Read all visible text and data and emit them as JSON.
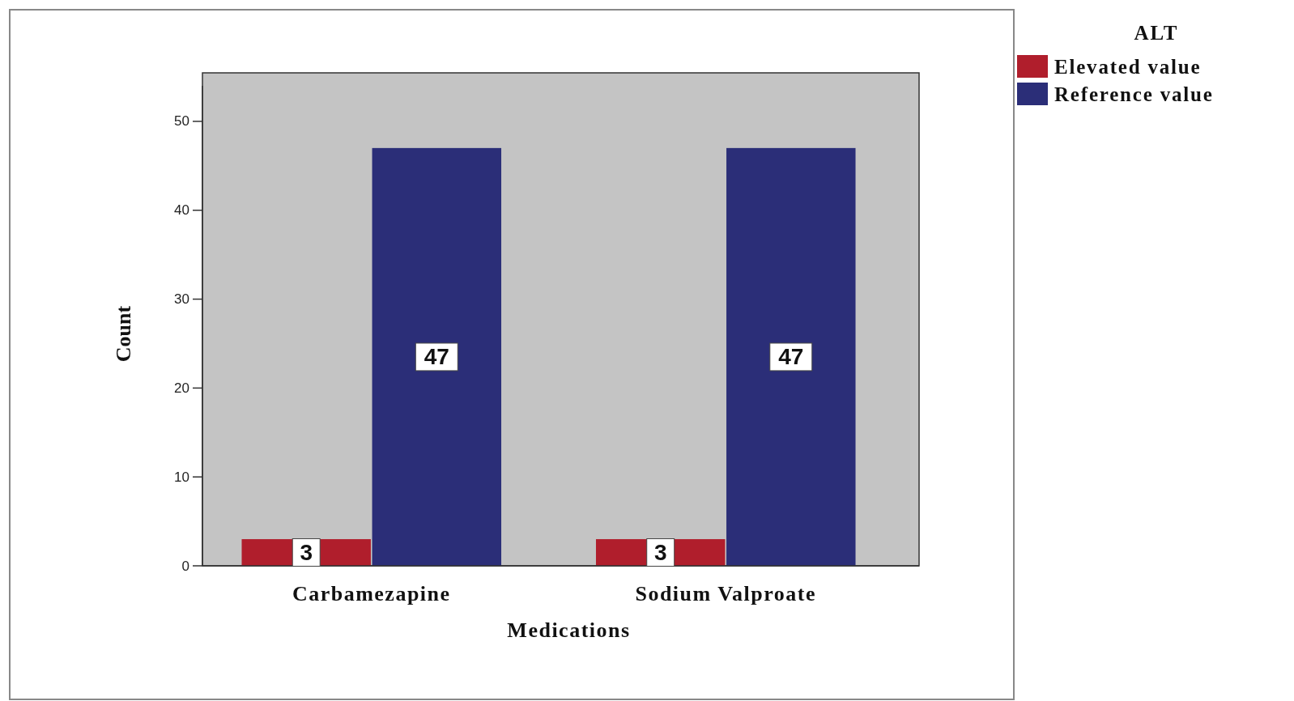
{
  "chart_data": {
    "type": "bar",
    "xlabel": "Medications",
    "ylabel": "Count",
    "legend_title": "ALT",
    "categories": [
      "Carbamezapine",
      "Sodium Valproate"
    ],
    "series": [
      {
        "name": "Elevated value",
        "color": "#b01e2c",
        "values": [
          3,
          3
        ]
      },
      {
        "name": "Reference value",
        "color": "#2b2e78",
        "values": [
          47,
          47
        ]
      }
    ],
    "ylim": [
      0,
      54
    ],
    "yticks": [
      0,
      10,
      20,
      30,
      40,
      50
    ],
    "data_labels": true,
    "legend": "top right",
    "grid": false
  }
}
